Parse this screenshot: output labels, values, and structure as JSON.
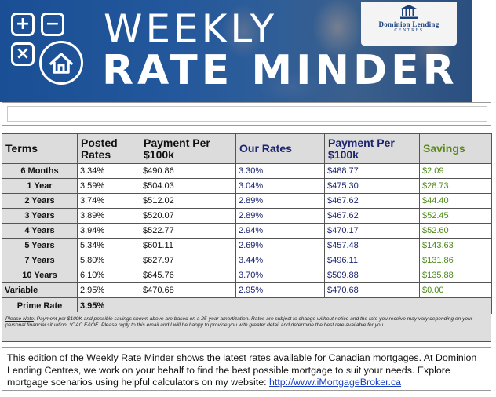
{
  "banner": {
    "title_line1": "WEEKLY",
    "title_line2": "RATE MINDER",
    "icons": [
      "plus-icon",
      "minus-icon",
      "times-icon",
      "house-icon"
    ],
    "logo_brand": "Dominion Lending",
    "logo_sub": "CENTRES",
    "colors": {
      "banner_blue": "#1a4f95",
      "text": "#ffffff"
    }
  },
  "table": {
    "headers": {
      "terms": "Terms",
      "posted_rates": "Posted Rates",
      "payment1": "Payment Per $100k",
      "our_rates": "Our Rates",
      "payment2": "Payment Per $100k",
      "savings": "Savings"
    },
    "rows": [
      {
        "term": "6 Months",
        "posted": "3.34%",
        "pay1": "$490.86",
        "our": "3.30%",
        "pay2": "$488.77",
        "savings": "$2.09"
      },
      {
        "term": "1 Year",
        "posted": "3.59%",
        "pay1": "$504.03",
        "our": "3.04%",
        "pay2": "$475.30",
        "savings": "$28.73"
      },
      {
        "term": "2 Years",
        "posted": "3.74%",
        "pay1": "$512.02",
        "our": "2.89%",
        "pay2": "$467.62",
        "savings": "$44.40"
      },
      {
        "term": "3 Years",
        "posted": "3.89%",
        "pay1": "$520.07",
        "our": "2.89%",
        "pay2": "$467.62",
        "savings": "$52.45"
      },
      {
        "term": "4 Years",
        "posted": "3.94%",
        "pay1": "$522.77",
        "our": "2.94%",
        "pay2": "$470.17",
        "savings": "$52.60"
      },
      {
        "term": "5 Years",
        "posted": "5.34%",
        "pay1": "$601.11",
        "our": "2.69%",
        "pay2": "$457.48",
        "savings": "$143.63"
      },
      {
        "term": "7 Years",
        "posted": "5.80%",
        "pay1": "$627.97",
        "our": "3.44%",
        "pay2": "$496.11",
        "savings": "$131.86"
      },
      {
        "term": "10 Years",
        "posted": "6.10%",
        "pay1": "$645.76",
        "our": "3.70%",
        "pay2": "$509.88",
        "savings": "$135.88"
      },
      {
        "term": "Variable",
        "posted": "2.95%",
        "pay1": "$470.68",
        "our": "2.95%",
        "pay2": "$470.68",
        "savings": "$0.00"
      }
    ],
    "prime": {
      "label": "Prime Rate",
      "value": "3.95%"
    },
    "colors": {
      "navy": "#1b2470",
      "green": "#4c8a16",
      "header_bg": "#dcdcdc"
    }
  },
  "note": {
    "lead": "Please Note",
    "text": ": Payment per $100K and possible savings shown above are based on a 25-year amortization. Rates are subject to change without notice and the rate you receive may vary depending on your personal financial situation. *OAC E&OE. Please reply to this email and I will be happy to provide you with greater detail and determine the best rate available for you."
  },
  "message": {
    "text": "This edition of the Weekly Rate Minder shows the latest rates available for Canadian mortgages. At Dominion Lending Centres, we work on your behalf to find the best possible mortgage to suit your needs. Explore mortgage scenarios using helpful calculators on my website: ",
    "link_text": "http://www.iMortgageBroker.ca"
  }
}
